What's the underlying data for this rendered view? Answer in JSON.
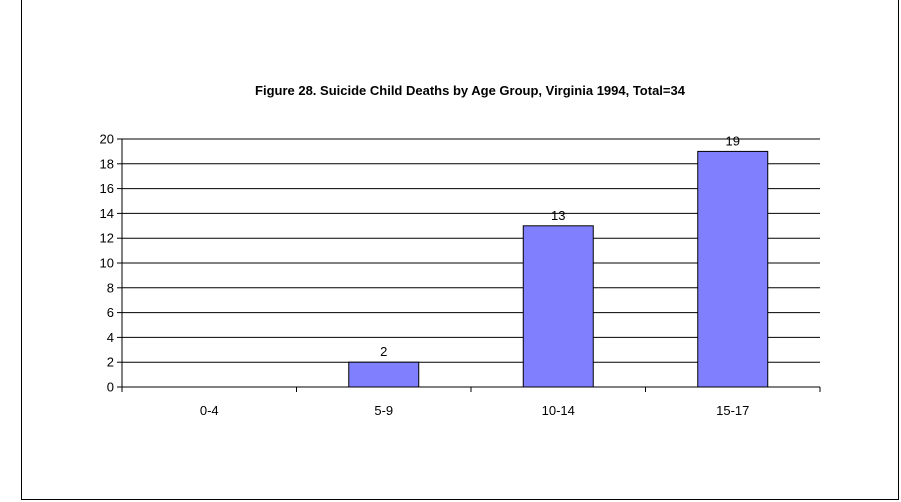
{
  "chart_data": {
    "type": "bar",
    "title": "Figure 28. Suicide Child Deaths by Age Group, Virginia 1994, Total=34",
    "xlabel": "",
    "ylabel": "",
    "categories": [
      "0-4",
      "5-9",
      "10-14",
      "15-17"
    ],
    "values": [
      0,
      2,
      13,
      19
    ],
    "data_labels": [
      "",
      "2",
      "13",
      "19"
    ],
    "ylim": [
      0,
      20
    ],
    "yticks": [
      0,
      2,
      4,
      6,
      8,
      10,
      12,
      14,
      16,
      18,
      20
    ],
    "grid": true,
    "legend": "none",
    "bar_color": "#8080ff"
  }
}
